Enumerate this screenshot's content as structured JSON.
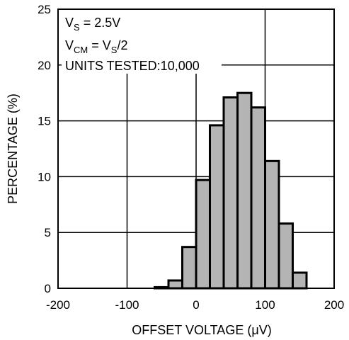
{
  "chart_data": {
    "type": "bar",
    "bin_edges": [
      -60,
      -40,
      -20,
      0,
      20,
      40,
      60,
      80,
      100,
      120,
      140,
      160
    ],
    "values": [
      0.1,
      0.7,
      3.7,
      9.7,
      14.6,
      17.1,
      17.5,
      16.2,
      11.4,
      5.8,
      1.4
    ],
    "xlabel": "OFFSET VOLTAGE (μV)",
    "ylabel": "PERCENTAGE (%)",
    "xlim": [
      -200,
      200
    ],
    "ylim": [
      0,
      25
    ],
    "xticks": [
      -200,
      -100,
      0,
      100,
      200
    ],
    "yticks": [
      0,
      5,
      10,
      15,
      20,
      25
    ],
    "grid": true,
    "bar_color": "#b4b4b4",
    "annotations": {
      "line1": {
        "main": "V",
        "sub": "S",
        "rest": " = 2.5V"
      },
      "line2": {
        "main": "V",
        "sub": "CM",
        "mid": " = V",
        "sub2": "S",
        "rest": "/2"
      },
      "line3": "UNITS TESTED:10,000"
    }
  }
}
